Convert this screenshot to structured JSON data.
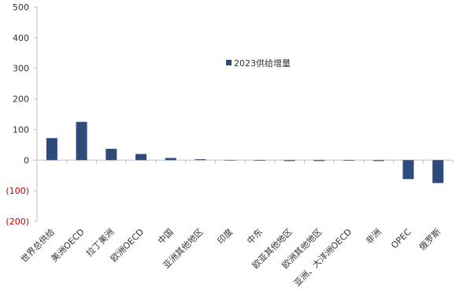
{
  "chart_data": {
    "type": "bar",
    "legend": {
      "label": "2023供给增量",
      "placement": "inside-upper-center"
    },
    "categories": [
      "世界总供给",
      "美洲OECD",
      "拉丁美洲",
      "欧洲OECD",
      "中国",
      "亚洲其他地区",
      "印度",
      "中东",
      "欧亚其他地区",
      "欧洲其他地区",
      "亚洲、大洋洲OECD",
      "非洲",
      "OPEC",
      "俄罗斯"
    ],
    "series": [
      {
        "name": "2023供给增量",
        "color": "#2f4b7c",
        "values": [
          72,
          125,
          37,
          20,
          7,
          3,
          0,
          -2,
          -3,
          -3,
          -2,
          -3,
          -62,
          -75
        ]
      }
    ],
    "ylim": [
      -200,
      500
    ],
    "yticks": [
      500,
      400,
      300,
      200,
      100,
      0,
      -100,
      -200
    ],
    "ytick_labels": [
      "500",
      "400",
      "300",
      "200",
      "100",
      "0",
      "(100)",
      "(200)"
    ],
    "negative_tick_color": "#c00000",
    "grid": false,
    "title": "",
    "xlabel": "",
    "ylabel": ""
  }
}
